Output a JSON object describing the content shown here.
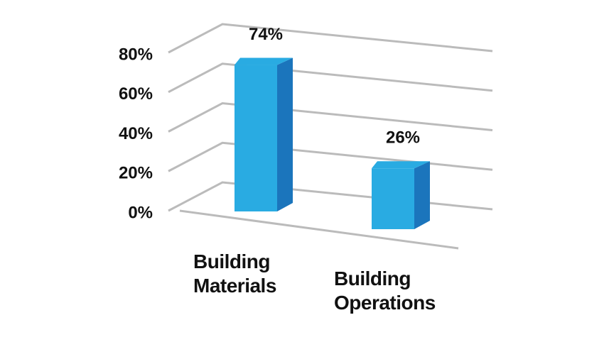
{
  "chart_data": {
    "type": "bar3d",
    "categories": [
      "Building Materials",
      "Building Operations"
    ],
    "values": [
      74,
      26
    ],
    "value_labels": [
      "74%",
      "26%"
    ],
    "color": "#29abe2",
    "side_color": "#1b75bc",
    "ylim": [
      0,
      80
    ],
    "yticks": [
      {
        "value": 0,
        "label": "0%"
      },
      {
        "value": 20,
        "label": "20%"
      },
      {
        "value": 40,
        "label": "40%"
      },
      {
        "value": 60,
        "label": "60%"
      },
      {
        "value": 80,
        "label": "80%"
      }
    ],
    "grid": true
  }
}
